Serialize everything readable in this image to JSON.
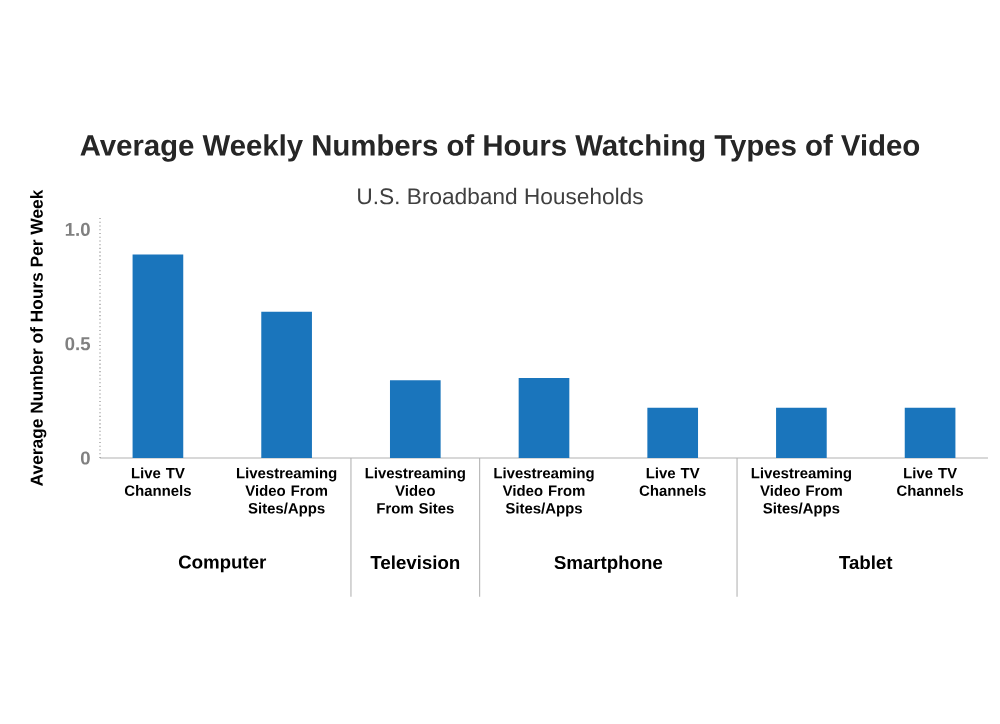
{
  "chart_data": {
    "type": "bar",
    "title": "Average Weekly Numbers of Hours Watching Types of Video",
    "subtitle": "U.S. Broadband Households",
    "ylabel": "Average Number of Hours Per Week",
    "categories": [
      "Live TV Channels",
      "Livestreaming Video From Sites/Apps",
      "Livestreaming Video From Sites",
      "Livestreaming Video From Sites/Apps",
      "Live TV Channels",
      "Livestreaming Video From Sites/Apps",
      "Live TV Channels"
    ],
    "values": [
      0.89,
      0.64,
      0.34,
      0.35,
      0.22,
      0.22,
      0.22
    ],
    "color": "#1a75bc",
    "ylim": [
      0,
      1.05
    ],
    "yticks": [
      0,
      {
        "value": 0.5,
        "label": "0.5"
      },
      {
        "value": 1,
        "label": "1.0"
      }
    ],
    "grid": false,
    "annotations": [
      "Computer",
      "Television",
      "Smartphone",
      "Tablet"
    ]
  }
}
